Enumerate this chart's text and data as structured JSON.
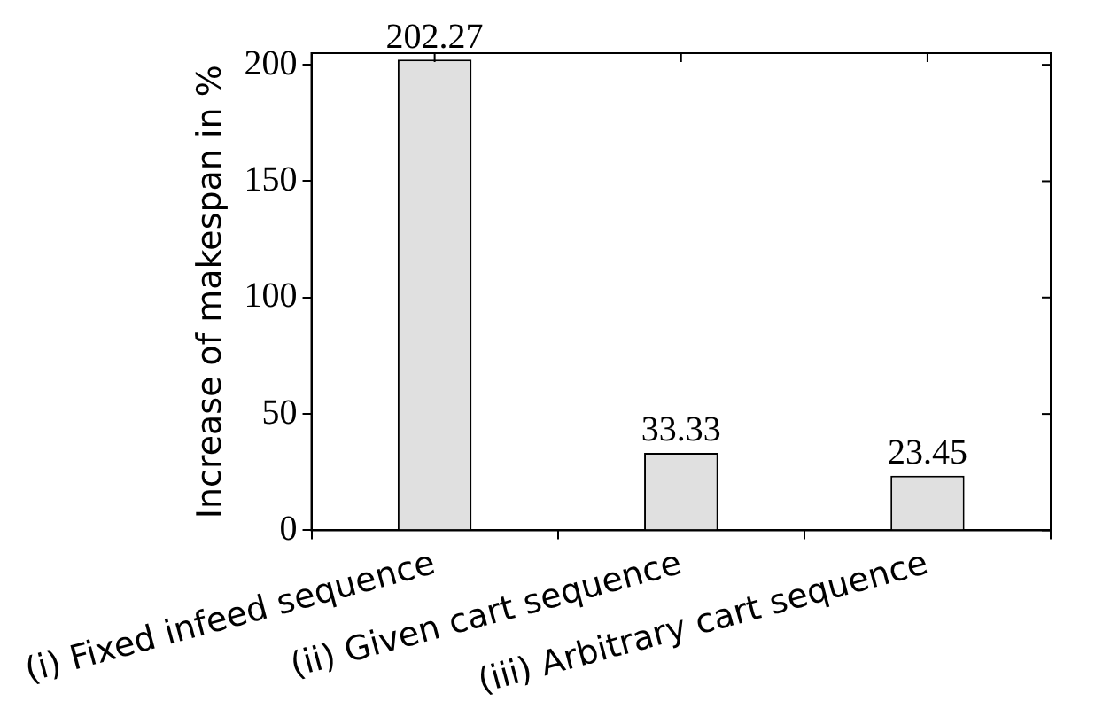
{
  "chart_data": {
    "type": "bar",
    "ylabel": "Increase of makespan in %",
    "categories": [
      "(i) Fixed infeed sequence",
      "(ii) Given cart sequence",
      "(iii) Arbitrary cart sequence"
    ],
    "values": [
      202.27,
      33.33,
      23.45
    ],
    "color": "#e0e0e0",
    "ylim": [
      0,
      205
    ],
    "yticks": [
      0,
      50,
      100,
      150,
      200
    ],
    "grid": false,
    "data_labels": true
  }
}
